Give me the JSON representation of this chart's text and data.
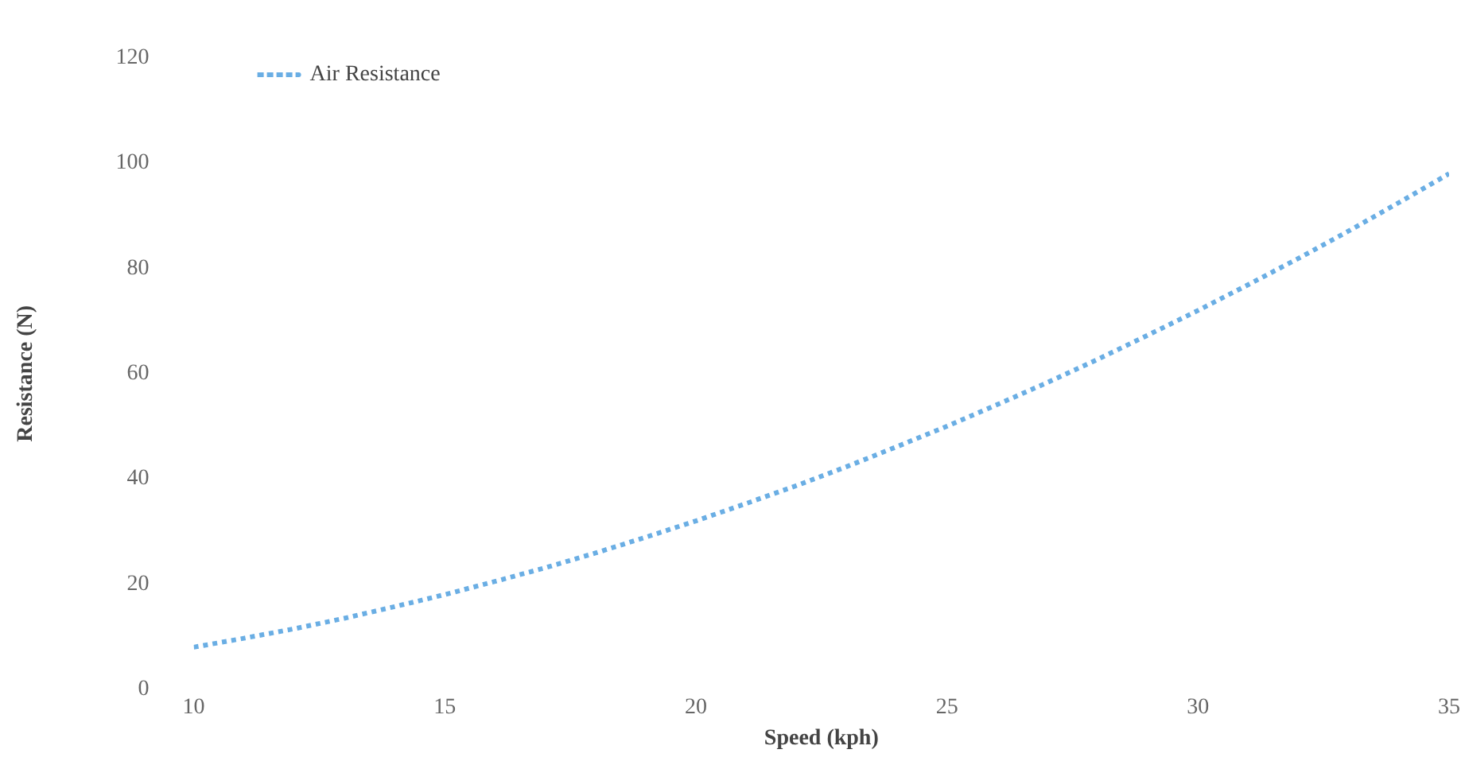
{
  "chart_data": {
    "type": "line",
    "xlabel": "Speed (kph)",
    "ylabel": "Resistance (N)",
    "x": [
      10,
      11,
      12,
      13,
      14,
      15,
      16,
      17,
      18,
      19,
      20,
      21,
      22,
      23,
      24,
      25,
      26,
      27,
      28,
      29,
      30,
      31,
      32,
      33,
      34,
      35
    ],
    "series": [
      {
        "name": "Air Resistance",
        "color": "#6aaee4",
        "values": [
          8,
          9.7,
          11.5,
          13.5,
          15.7,
          18,
          20.5,
          23.1,
          25.9,
          28.9,
          32,
          35.3,
          38.7,
          42.3,
          46.1,
          50,
          54.1,
          58.3,
          62.7,
          67.3,
          72,
          76.9,
          81.9,
          87.1,
          92.5,
          98
        ]
      }
    ],
    "xlim": [
      10,
      35
    ],
    "xticks": [
      10,
      15,
      20,
      25,
      30,
      35
    ],
    "ylim": [
      0,
      120
    ],
    "yticks": [
      0,
      20,
      40,
      60,
      80,
      100,
      120
    ],
    "grid": false,
    "legend": "top left",
    "marker": "none",
    "line_style": "dotted"
  }
}
